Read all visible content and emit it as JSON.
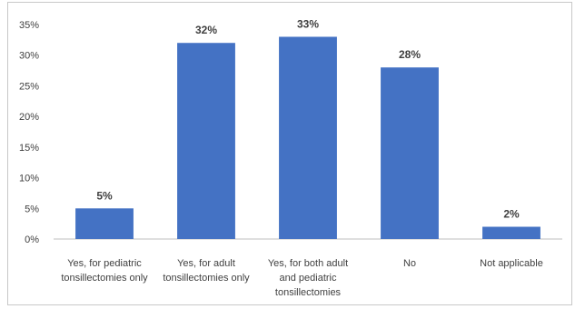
{
  "chart_data": {
    "type": "bar",
    "title": "",
    "xlabel": "",
    "ylabel": "",
    "ylim": [
      0,
      35
    ],
    "y_ticks": [
      0,
      5,
      10,
      15,
      20,
      25,
      30,
      35
    ],
    "y_tick_labels": [
      "0%",
      "5%",
      "10%",
      "15%",
      "20%",
      "25%",
      "30%",
      "35%"
    ],
    "grid": false,
    "legend": "none",
    "bar_color": "#4472C4",
    "categories": [
      [
        "Yes, for pediatric",
        "tonsillectomies only"
      ],
      [
        "Yes, for adult",
        "tonsillectomies only"
      ],
      [
        "Yes, for both adult",
        "and pediatric",
        "tonsillectomies"
      ],
      [
        "No"
      ],
      [
        "Not applicable"
      ]
    ],
    "values": [
      5,
      32,
      33,
      28,
      2
    ],
    "data_labels": [
      "5%",
      "32%",
      "33%",
      "28%",
      "2%"
    ]
  }
}
